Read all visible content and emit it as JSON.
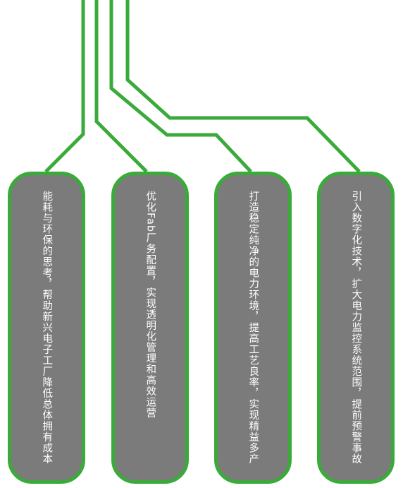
{
  "diagram": {
    "line_color": "#3aaa3a",
    "box_fill": "#7b7b7b",
    "text_color": "#ffffff",
    "items": [
      {
        "text": "能耗与环保的思考，帮助新兴电子工厂降低总体拥有成本"
      },
      {
        "text": "优化Fab厂务配置，实现透明化管理和高效运营"
      },
      {
        "text": "打造稳定纯净的电力环境，提高工艺良率，实现精益多产"
      },
      {
        "text": "引入数字化技术，扩大电力监控系统范围，提前预警事故"
      }
    ]
  }
}
